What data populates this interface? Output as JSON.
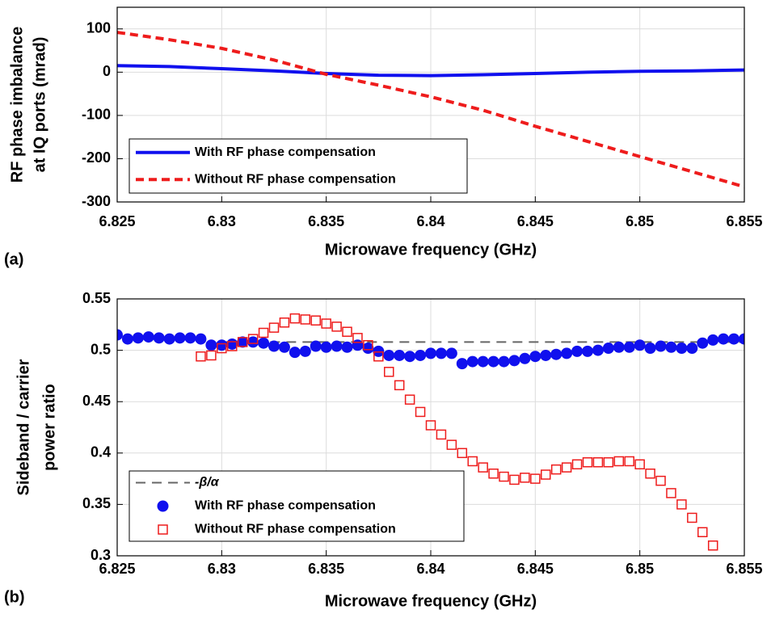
{
  "chart_data": [
    {
      "type": "line",
      "panel_label": "(a)",
      "ylabel": [
        "RF phase imbalance",
        "at IQ ports (mrad)"
      ],
      "xlabel": "Microwave frequency (GHz)",
      "xlim": [
        6.825,
        6.855
      ],
      "xticks": [
        6.825,
        6.83,
        6.835,
        6.84,
        6.845,
        6.85,
        6.855
      ],
      "ylim": [
        -300,
        150
      ],
      "yticks": [
        -300,
        -200,
        -100,
        0,
        100
      ],
      "grid": true,
      "legend": "lower left",
      "x": [
        6.825,
        6.8275,
        6.83,
        6.8325,
        6.835,
        6.8375,
        6.84,
        6.8425,
        6.845,
        6.8475,
        6.85,
        6.8525,
        6.855
      ],
      "series": [
        {
          "name": "With RF phase compensation",
          "color": "#1010ee",
          "style": "solid",
          "values": [
            15,
            13,
            8,
            3,
            -3,
            -7,
            -8,
            -6,
            -3,
            0,
            2,
            3,
            5
          ]
        },
        {
          "name": "Without RF phase compensation",
          "color": "#ee1c1c",
          "style": "dashed",
          "values": [
            92,
            75,
            55,
            28,
            -5,
            -30,
            -57,
            -88,
            -125,
            -160,
            -195,
            -230,
            -265
          ]
        }
      ]
    },
    {
      "type": "scatter",
      "panel_label": "(b)",
      "ylabel": [
        "Sideband / carrier",
        "power ratio"
      ],
      "xlabel": "Microwave frequency (GHz)",
      "xlim": [
        6.825,
        6.855
      ],
      "xticks": [
        6.825,
        6.83,
        6.835,
        6.84,
        6.845,
        6.85,
        6.855
      ],
      "ylim": [
        0.3,
        0.55
      ],
      "yticks": [
        0.3,
        0.35,
        0.4,
        0.45,
        0.5,
        0.55
      ],
      "grid": true,
      "legend": "lower left",
      "series": [
        {
          "name": "-β/α",
          "color": "#666666",
          "style": "dashed",
          "x": [
            6.83,
            6.855
          ],
          "values": [
            0.508,
            0.508
          ]
        },
        {
          "name": "With RF phase compensation",
          "color": "#1010ee",
          "style": "dot",
          "x": [
            6.825,
            6.8255,
            6.826,
            6.8265,
            6.827,
            6.8275,
            6.828,
            6.8285,
            6.829,
            6.8295,
            6.83,
            6.8305,
            6.831,
            6.8315,
            6.832,
            6.8325,
            6.833,
            6.8335,
            6.834,
            6.8345,
            6.835,
            6.8355,
            6.836,
            6.8365,
            6.837,
            6.8375,
            6.838,
            6.8385,
            6.839,
            6.8395,
            6.84,
            6.8405,
            6.841,
            6.8415,
            6.842,
            6.8425,
            6.843,
            6.8435,
            6.844,
            6.8445,
            6.845,
            6.8455,
            6.846,
            6.8465,
            6.847,
            6.8475,
            6.848,
            6.8485,
            6.849,
            6.8495,
            6.85,
            6.8505,
            6.851,
            6.8515,
            6.852,
            6.8525,
            6.853,
            6.8535,
            6.854,
            6.8545,
            6.855
          ],
          "values": [
            0.515,
            0.511,
            0.512,
            0.513,
            0.512,
            0.511,
            0.512,
            0.512,
            0.511,
            0.505,
            0.505,
            0.506,
            0.508,
            0.508,
            0.507,
            0.504,
            0.503,
            0.498,
            0.499,
            0.504,
            0.503,
            0.504,
            0.503,
            0.505,
            0.502,
            0.499,
            0.495,
            0.495,
            0.494,
            0.495,
            0.497,
            0.497,
            0.497,
            0.487,
            0.489,
            0.489,
            0.489,
            0.489,
            0.49,
            0.492,
            0.494,
            0.495,
            0.496,
            0.497,
            0.499,
            0.499,
            0.5,
            0.502,
            0.503,
            0.503,
            0.505,
            0.502,
            0.504,
            0.503,
            0.502,
            0.502,
            0.507,
            0.51,
            0.511,
            0.511,
            0.511
          ]
        },
        {
          "name": "Without RF phase compensation",
          "color": "#ee1c1c",
          "style": "square",
          "x": [
            6.829,
            6.8295,
            6.83,
            6.8305,
            6.831,
            6.8315,
            6.832,
            6.8325,
            6.833,
            6.8335,
            6.834,
            6.8345,
            6.835,
            6.8355,
            6.836,
            6.8365,
            6.837,
            6.8375,
            6.838,
            6.8385,
            6.839,
            6.8395,
            6.84,
            6.8405,
            6.841,
            6.8415,
            6.842,
            6.8425,
            6.843,
            6.8435,
            6.844,
            6.8445,
            6.845,
            6.8455,
            6.846,
            6.8465,
            6.847,
            6.8475,
            6.848,
            6.8485,
            6.849,
            6.8495,
            6.85,
            6.8505,
            6.851,
            6.8515,
            6.852,
            6.8525,
            6.853,
            6.8535
          ],
          "values": [
            0.494,
            0.495,
            0.502,
            0.504,
            0.508,
            0.511,
            0.517,
            0.522,
            0.527,
            0.531,
            0.53,
            0.529,
            0.526,
            0.523,
            0.518,
            0.512,
            0.505,
            0.494,
            0.479,
            0.466,
            0.452,
            0.44,
            0.427,
            0.418,
            0.408,
            0.4,
            0.392,
            0.386,
            0.38,
            0.377,
            0.374,
            0.376,
            0.375,
            0.379,
            0.384,
            0.386,
            0.389,
            0.391,
            0.391,
            0.391,
            0.392,
            0.392,
            0.389,
            0.38,
            0.373,
            0.361,
            0.35,
            0.337,
            0.323,
            0.31
          ]
        }
      ]
    }
  ]
}
